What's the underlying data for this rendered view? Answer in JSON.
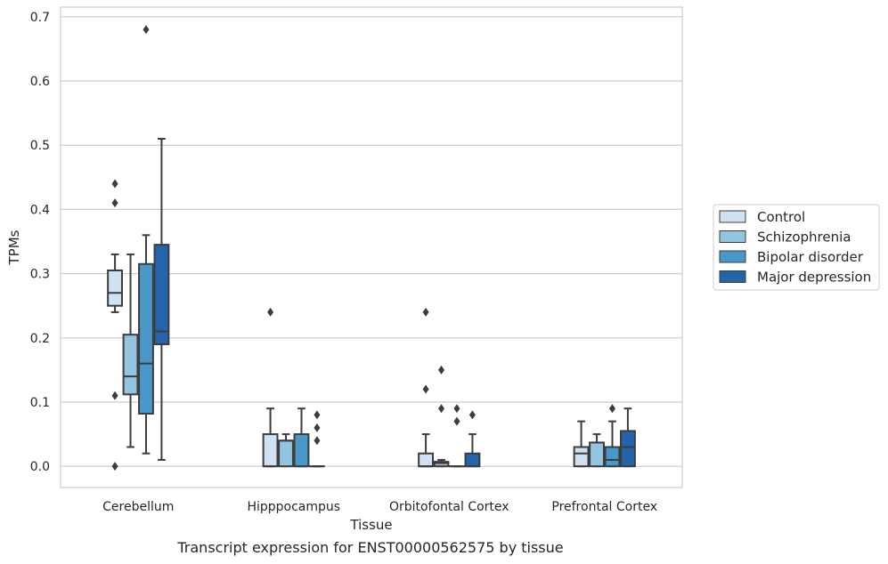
{
  "caption": "Transcript expression for ENST00000562575 by tissue",
  "chart_data": {
    "type": "box",
    "xlabel": "Tissue",
    "ylabel": "TPMs",
    "ylim": [
      -0.033,
      0.715
    ],
    "yticks": [
      0.0,
      0.1,
      0.2,
      0.3,
      0.4,
      0.5,
      0.6,
      0.7
    ],
    "ytick_labels": [
      "0.0",
      "0.1",
      "0.2",
      "0.3",
      "0.4",
      "0.5",
      "0.6",
      "0.7"
    ],
    "grid": "horizontal",
    "legend_placement": "right",
    "categories": [
      "Cerebellum",
      "Hipppocampus",
      "Orbitofontal Cortex",
      "Prefrontal Cortex"
    ],
    "series": [
      {
        "name": "Control",
        "color": "#d0e1f2",
        "boxes": [
          {
            "q1": 0.25,
            "median": 0.27,
            "q3": 0.305,
            "whisker_low": 0.24,
            "whisker_high": 0.33,
            "outliers": [
              0.44,
              0.41,
              0.11,
              0.0
            ]
          },
          {
            "q1": 0.0,
            "median": 0.0,
            "q3": 0.05,
            "whisker_low": 0.0,
            "whisker_high": 0.09,
            "outliers": [
              0.24
            ]
          },
          {
            "q1": 0.0,
            "median": 0.0,
            "q3": 0.02,
            "whisker_low": 0.0,
            "whisker_high": 0.05,
            "outliers": [
              0.24,
              0.12
            ]
          },
          {
            "q1": 0.0,
            "median": 0.02,
            "q3": 0.03,
            "whisker_low": 0.0,
            "whisker_high": 0.07,
            "outliers": []
          }
        ]
      },
      {
        "name": "Schizophrenia",
        "color": "#94c4df",
        "boxes": [
          {
            "q1": 0.112,
            "median": 0.14,
            "q3": 0.205,
            "whisker_low": 0.03,
            "whisker_high": 0.33,
            "outliers": []
          },
          {
            "q1": 0.0,
            "median": 0.04,
            "q3": 0.04,
            "whisker_low": 0.0,
            "whisker_high": 0.05,
            "outliers": []
          },
          {
            "q1": 0.0,
            "median": 0.005,
            "q3": 0.007,
            "whisker_low": 0.0,
            "whisker_high": 0.01,
            "outliers": [
              0.15,
              0.09
            ]
          },
          {
            "q1": 0.0,
            "median": 0.037,
            "q3": 0.037,
            "whisker_low": 0.0,
            "whisker_high": 0.05,
            "outliers": []
          }
        ]
      },
      {
        "name": "Bipolar disorder",
        "color": "#4a98c9",
        "boxes": [
          {
            "q1": 0.082,
            "median": 0.16,
            "q3": 0.315,
            "whisker_low": 0.02,
            "whisker_high": 0.36,
            "outliers": [
              0.68
            ]
          },
          {
            "q1": 0.0,
            "median": 0.0,
            "q3": 0.05,
            "whisker_low": 0.0,
            "whisker_high": 0.09,
            "outliers": []
          },
          {
            "q1": 0.0,
            "median": 0.0,
            "q3": 0.0,
            "whisker_low": 0.0,
            "whisker_high": 0.0,
            "outliers": [
              0.09,
              0.07
            ]
          },
          {
            "q1": 0.0,
            "median": 0.01,
            "q3": 0.03,
            "whisker_low": 0.0,
            "whisker_high": 0.07,
            "outliers": [
              0.09
            ]
          }
        ]
      },
      {
        "name": "Major depression",
        "color": "#2464aa",
        "boxes": [
          {
            "q1": 0.19,
            "median": 0.21,
            "q3": 0.345,
            "whisker_low": 0.01,
            "whisker_high": 0.51,
            "outliers": []
          },
          {
            "q1": 0.0,
            "median": 0.0,
            "q3": 0.0,
            "whisker_low": 0.0,
            "whisker_high": 0.0,
            "outliers": [
              0.08,
              0.06,
              0.04
            ]
          },
          {
            "q1": 0.0,
            "median": 0.0,
            "q3": 0.02,
            "whisker_low": 0.0,
            "whisker_high": 0.05,
            "outliers": [
              0.08
            ]
          },
          {
            "q1": 0.0,
            "median": 0.03,
            "q3": 0.055,
            "whisker_low": 0.0,
            "whisker_high": 0.09,
            "outliers": []
          }
        ]
      }
    ]
  }
}
